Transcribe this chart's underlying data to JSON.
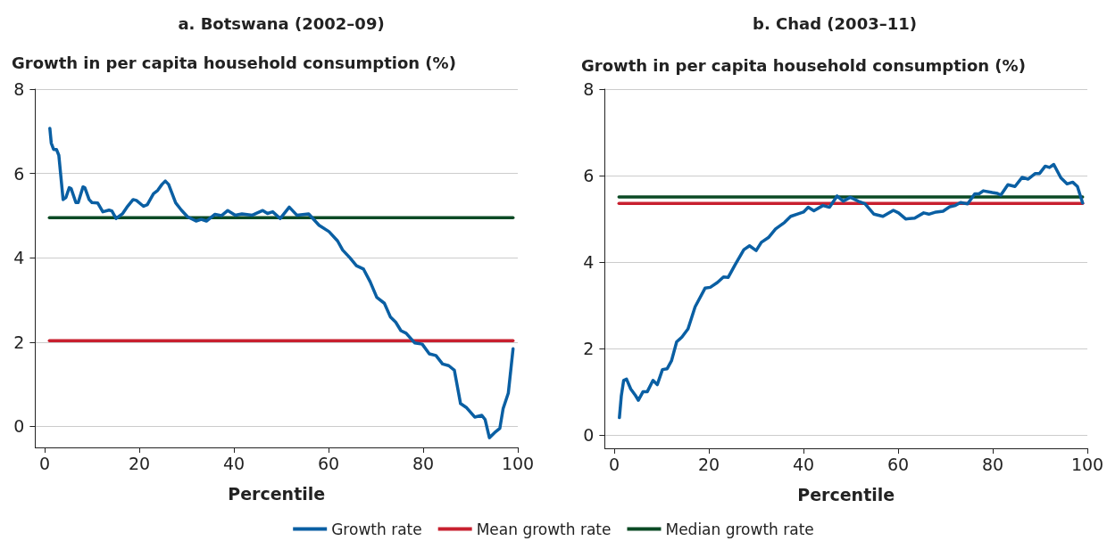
{
  "chart_data": [
    {
      "type": "line",
      "title": "a. Botswana (2002–09)",
      "ylabel": "Growth in per capita household consumption (%)",
      "xlabel": "Percentile",
      "xlim": [
        -2,
        100
      ],
      "xticks": [
        0,
        20,
        40,
        60,
        80,
        100
      ],
      "ylim": [
        -0.5,
        8
      ],
      "yticks": [
        0,
        2,
        4,
        6,
        8
      ],
      "grid": "y",
      "legend": "bottom",
      "marker": "none",
      "series": [
        {
          "name": "Growth rate",
          "color": "#0a5fa3",
          "x": [
            1.1,
            1.4,
            1.9,
            2.5,
            3,
            3.9,
            4.5,
            5.2,
            5.6,
            6.6,
            7.1,
            8.1,
            8.5,
            9.4,
            10,
            11.2,
            12.3,
            13.6,
            14.2,
            15.1,
            16.5,
            17.4,
            18.7,
            19.4,
            20.9,
            21.7,
            23,
            23.9,
            24.8,
            25.5,
            26.2,
            27.7,
            28.9,
            30.2,
            32,
            33.1,
            34.2,
            36,
            37.4,
            38.7,
            40.3,
            41.7,
            43.9,
            46.1,
            47.1,
            48.2,
            49.8,
            51.7,
            53.3,
            55.8,
            58,
            60.1,
            61.9,
            63,
            64.5,
            65.9,
            67.4,
            68.8,
            70.2,
            71.8,
            73.1,
            74.2,
            75.3,
            76.4,
            78.2,
            79.8,
            81.3,
            82.7,
            84.1,
            85.4,
            86.6,
            87.9,
            89.2,
            90.9,
            92.4,
            93.1,
            94,
            95.1,
            96.2,
            96.9,
            98,
            99
          ],
          "values": [
            7.07,
            6.72,
            6.57,
            6.57,
            6.43,
            5.38,
            5.43,
            5.66,
            5.64,
            5.31,
            5.31,
            5.68,
            5.66,
            5.38,
            5.31,
            5.3,
            5.09,
            5.13,
            5.11,
            4.93,
            5.05,
            5.2,
            5.38,
            5.36,
            5.22,
            5.26,
            5.52,
            5.6,
            5.74,
            5.82,
            5.74,
            5.3,
            5.13,
            4.97,
            4.87,
            4.91,
            4.87,
            5.03,
            5,
            5.12,
            5.01,
            5.04,
            5.01,
            5.12,
            5.05,
            5.09,
            4.93,
            5.2,
            5.01,
            5.04,
            4.77,
            4.62,
            4.4,
            4.18,
            4,
            3.81,
            3.73,
            3.43,
            3.06,
            2.92,
            2.59,
            2.47,
            2.27,
            2.21,
            1.98,
            1.95,
            1.72,
            1.68,
            1.48,
            1.44,
            1.33,
            0.54,
            0.44,
            0.22,
            0.26,
            0.16,
            -0.27,
            -0.15,
            -0.05,
            0.42,
            0.79,
            1.84
          ]
        },
        {
          "name": "Mean growth rate",
          "color": "#c8202f",
          "x": [
            1,
            99
          ],
          "values": [
            2.03,
            2.03
          ]
        },
        {
          "name": "Median growth rate",
          "color": "#0b4a24",
          "x": [
            1,
            99
          ],
          "values": [
            4.95,
            4.95
          ]
        }
      ]
    },
    {
      "type": "line",
      "title": "b. Chad (2003–11)",
      "ylabel": "Growth in per capita household consumption (%)",
      "xlabel": "Percentile",
      "xlim": [
        -2,
        100
      ],
      "xticks": [
        0,
        20,
        40,
        60,
        80,
        100
      ],
      "ylim": [
        -0.3,
        8
      ],
      "yticks": [
        0,
        2,
        4,
        6,
        8
      ],
      "grid": "y",
      "marker": "none",
      "series": [
        {
          "color": "#0a5fa3",
          "x": [
            1.1,
            1.5,
            2,
            2.6,
            3.5,
            4.5,
            5.1,
            6.1,
            7,
            8.2,
            9.1,
            10.2,
            11.2,
            12.1,
            13.2,
            14.3,
            15.6,
            17.1,
            19.2,
            20.3,
            21.8,
            23.1,
            24.1,
            25.6,
            27.4,
            28.6,
            30,
            31.1,
            32.6,
            34.1,
            36,
            37.3,
            38.9,
            40,
            41,
            42.2,
            44.1,
            45.5,
            47.1,
            48.4,
            49.9,
            51.6,
            53,
            54.9,
            56.8,
            59,
            60.1,
            61.6,
            63.5,
            65.4,
            66.5,
            68,
            69.5,
            70.9,
            72.1,
            73.2,
            74.7,
            76.2,
            77.1,
            78,
            79.9,
            81,
            81.7,
            83.2,
            84.7,
            86.2,
            87.5,
            89,
            89.9,
            91.1,
            92,
            92.9,
            94.4,
            95.7,
            96.9,
            97.9,
            99
          ],
          "values": [
            0.41,
            0.91,
            1.27,
            1.3,
            1.07,
            0.92,
            0.81,
            1.01,
            1.01,
            1.27,
            1.17,
            1.52,
            1.54,
            1.72,
            2.16,
            2.27,
            2.46,
            2.97,
            3.4,
            3.42,
            3.53,
            3.66,
            3.65,
            3.95,
            4.29,
            4.38,
            4.27,
            4.46,
            4.57,
            4.77,
            4.92,
            5.06,
            5.12,
            5.16,
            5.27,
            5.19,
            5.31,
            5.27,
            5.53,
            5.41,
            5.5,
            5.41,
            5.35,
            5.11,
            5.06,
            5.2,
            5.14,
            5,
            5.02,
            5.14,
            5.11,
            5.16,
            5.18,
            5.28,
            5.31,
            5.38,
            5.35,
            5.58,
            5.58,
            5.65,
            5.61,
            5.59,
            5.55,
            5.79,
            5.75,
            5.96,
            5.92,
            6.05,
            6.05,
            6.22,
            6.19,
            6.26,
            5.95,
            5.81,
            5.85,
            5.75,
            5.37
          ]
        },
        {
          "color": "#c8202f",
          "x": [
            1,
            99
          ],
          "values": [
            5.36,
            5.36
          ]
        },
        {
          "color": "#0b4a24",
          "x": [
            1,
            99
          ],
          "values": [
            5.51,
            5.51
          ]
        }
      ]
    }
  ]
}
